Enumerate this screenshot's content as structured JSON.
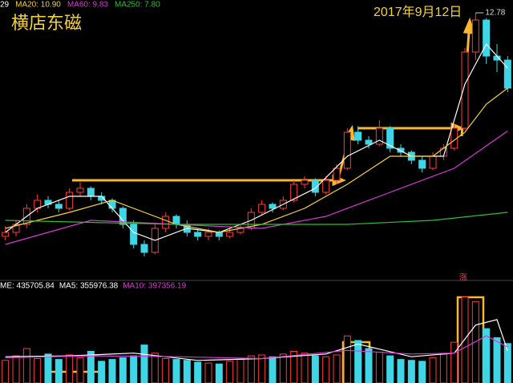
{
  "chart_data": {
    "type": "candlestick",
    "title": "横店东磁",
    "annotation": "2017年9月12日",
    "up_label": "涨",
    "ylim": [
      6.3,
      13.1
    ],
    "up_color": "#ff3b3b",
    "down_color": "#3ed6e6",
    "candles": [
      [
        7.2,
        7.45,
        7.1,
        7.3
      ],
      [
        7.3,
        7.6,
        7.2,
        7.5
      ],
      [
        7.5,
        8.0,
        7.4,
        7.9
      ],
      [
        7.9,
        8.25,
        7.8,
        8.1
      ],
      [
        8.1,
        8.2,
        7.9,
        8.0
      ],
      [
        8.0,
        8.1,
        7.8,
        7.9
      ],
      [
        7.9,
        8.4,
        7.85,
        8.3
      ],
      [
        8.3,
        8.55,
        8.2,
        8.4
      ],
      [
        8.4,
        8.45,
        8.1,
        8.2
      ],
      [
        8.2,
        8.3,
        8.0,
        8.1
      ],
      [
        8.1,
        8.15,
        7.8,
        7.9
      ],
      [
        7.9,
        7.95,
        7.4,
        7.5
      ],
      [
        7.5,
        7.6,
        6.9,
        7.0
      ],
      [
        7.0,
        7.1,
        6.7,
        6.8
      ],
      [
        6.8,
        7.5,
        6.75,
        7.4
      ],
      [
        7.4,
        7.8,
        7.3,
        7.7
      ],
      [
        7.7,
        7.75,
        7.4,
        7.5
      ],
      [
        7.5,
        7.6,
        7.2,
        7.3
      ],
      [
        7.3,
        7.4,
        7.1,
        7.2
      ],
      [
        7.2,
        7.4,
        7.1,
        7.3
      ],
      [
        7.3,
        7.35,
        7.1,
        7.2
      ],
      [
        7.2,
        7.4,
        7.15,
        7.3
      ],
      [
        7.3,
        7.5,
        7.25,
        7.4
      ],
      [
        7.4,
        7.9,
        7.35,
        7.8
      ],
      [
        7.8,
        8.1,
        7.75,
        8.0
      ],
      [
        8.0,
        8.05,
        7.8,
        7.9
      ],
      [
        7.9,
        8.2,
        7.85,
        8.1
      ],
      [
        8.1,
        8.6,
        8.05,
        8.5
      ],
      [
        8.5,
        8.7,
        8.4,
        8.6
      ],
      [
        8.6,
        8.65,
        8.2,
        8.3
      ],
      [
        8.3,
        8.7,
        8.25,
        8.6
      ],
      [
        8.6,
        9.0,
        8.5,
        8.9
      ],
      [
        8.9,
        9.9,
        8.85,
        9.8
      ],
      [
        9.8,
        9.95,
        9.5,
        9.6
      ],
      [
        9.6,
        9.7,
        9.4,
        9.5
      ],
      [
        9.5,
        10.1,
        9.45,
        9.9
      ],
      [
        9.9,
        9.95,
        9.3,
        9.4
      ],
      [
        9.4,
        9.5,
        9.2,
        9.3
      ],
      [
        9.3,
        9.35,
        9.0,
        9.1
      ],
      [
        9.1,
        9.2,
        8.8,
        8.9
      ],
      [
        8.9,
        9.3,
        8.85,
        9.2
      ],
      [
        9.2,
        9.5,
        9.1,
        9.4
      ],
      [
        9.4,
        10.0,
        9.35,
        9.9
      ],
      [
        9.9,
        11.9,
        9.85,
        11.8
      ],
      [
        11.8,
        12.78,
        11.6,
        12.6
      ],
      [
        12.6,
        12.65,
        11.5,
        11.7
      ],
      [
        11.7,
        12.0,
        11.3,
        11.6
      ],
      [
        11.6,
        11.7,
        10.8,
        10.9
      ]
    ],
    "series": [
      {
        "name": "29",
        "color": "#ffffff",
        "x": [
          0,
          3,
          6,
          9,
          12,
          14,
          17,
          20,
          23,
          26,
          29,
          32,
          35,
          38,
          41,
          43,
          45,
          47
        ],
        "values": [
          7.3,
          7.9,
          8.2,
          8.2,
          7.3,
          7.1,
          7.4,
          7.3,
          7.6,
          8.0,
          8.4,
          9.2,
          9.6,
          9.2,
          9.2,
          11.0,
          12.0,
          11.4
        ]
      },
      {
        "name": "MA20: 10.90",
        "color": "#f5d23c",
        "x": [
          0,
          6,
          10,
          13,
          16,
          20,
          24,
          28,
          32,
          36,
          40,
          43,
          45,
          47
        ],
        "values": [
          7.4,
          7.8,
          8.1,
          7.8,
          7.5,
          7.3,
          7.5,
          7.9,
          8.5,
          9.2,
          9.2,
          9.8,
          10.5,
          10.9
        ]
      },
      {
        "name": "MA60: 9.83",
        "color": "#d63bd6",
        "x": [
          0,
          8,
          16,
          24,
          30,
          36,
          42,
          47
        ],
        "values": [
          7.0,
          7.6,
          7.5,
          7.4,
          7.7,
          8.3,
          8.9,
          9.83
        ]
      },
      {
        "name": "MA250: 7.80",
        "color": "#2fbf2f",
        "x": [
          0,
          16,
          32,
          40,
          47
        ],
        "values": [
          7.6,
          7.5,
          7.5,
          7.6,
          7.8
        ]
      }
    ],
    "volume_label": "ME: 435705.84",
    "vlim": [
      0,
      1000000
    ],
    "volume": [
      250000,
      300000,
      380000,
      270000,
      320000,
      260000,
      310000,
      280000,
      350000,
      240000,
      260000,
      280000,
      300000,
      420000,
      330000,
      270000,
      260000,
      250000,
      230000,
      220000,
      210000,
      240000,
      260000,
      300000,
      310000,
      290000,
      320000,
      350000,
      330000,
      300000,
      290000,
      310000,
      520000,
      470000,
      380000,
      340000,
      300000,
      260000,
      250000,
      240000,
      280000,
      320000,
      450000,
      950000,
      900000,
      600000,
      500000,
      435705.84
    ],
    "volume_series": [
      {
        "name": "MA5: 355976.38",
        "color": "#ffffff",
        "x": [
          0,
          6,
          12,
          18,
          24,
          30,
          33,
          38,
          42,
          44,
          46,
          47
        ],
        "values": [
          290000,
          300000,
          330000,
          250000,
          270000,
          320000,
          430000,
          290000,
          330000,
          640000,
          700000,
          355976.38
        ]
      },
      {
        "name": "MA10: 397356.19",
        "color": "#d63bd6",
        "x": [
          0,
          8,
          16,
          24,
          32,
          38,
          42,
          45,
          47
        ],
        "values": [
          280000,
          300000,
          290000,
          270000,
          360000,
          320000,
          330000,
          520000,
          397356.19
        ]
      }
    ]
  }
}
